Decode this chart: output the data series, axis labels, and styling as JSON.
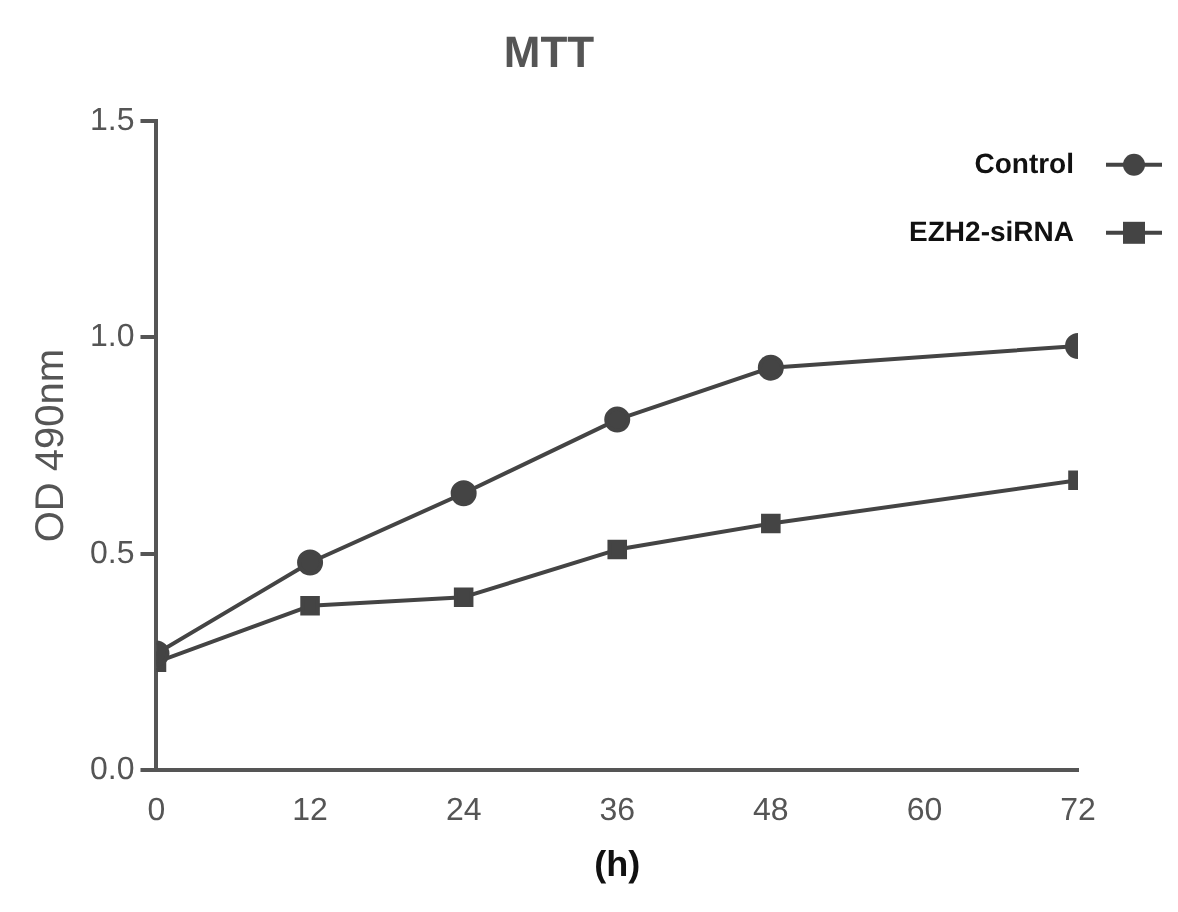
{
  "chart_data": {
    "type": "line",
    "title": "MTT",
    "xlabel": "(h)",
    "ylabel": "OD 490nm",
    "xlim": [
      0,
      72
    ],
    "xticks": [
      0,
      12,
      24,
      36,
      48,
      60,
      72
    ],
    "ylim": [
      0,
      1.5
    ],
    "yticks": [
      {
        "value": 0,
        "label": "0.0"
      },
      {
        "value": 0.5,
        "label": "0.5"
      },
      {
        "value": 1,
        "label": "1.0"
      },
      {
        "value": 1.5,
        "label": "1.5"
      }
    ],
    "grid": false,
    "legend": "top right",
    "line_style": "solid",
    "series": [
      {
        "name": "Control",
        "color": "#444444",
        "marker": "circle",
        "x": [
          0,
          12,
          24,
          36,
          48,
          72
        ],
        "values": [
          0.27,
          0.48,
          0.64,
          0.81,
          0.93,
          0.98
        ]
      },
      {
        "name": "EZH2-siRNA",
        "color": "#444444",
        "marker": "square",
        "x": [
          0,
          12,
          24,
          36,
          48,
          72
        ],
        "values": [
          0.25,
          0.38,
          0.4,
          0.51,
          0.57,
          0.67
        ]
      }
    ]
  }
}
